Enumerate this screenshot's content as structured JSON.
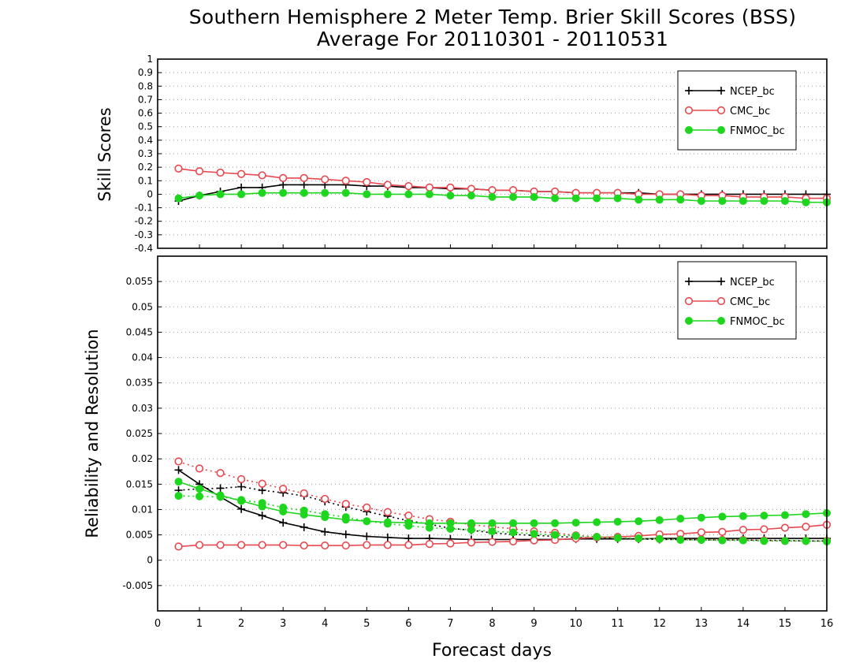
{
  "title_line1": "Southern Hemisphere 2 Meter Temp. Brier Skill Scores (BSS)",
  "title_line2": "Average For 20110301 - 20110531",
  "xlabel": "Forecast days",
  "legend_entries": [
    "NCEP_bc",
    "CMC_bc",
    "FNMOC_bc"
  ],
  "colors": {
    "NCEP_bc": "#000000",
    "CMC_bc": "#e8484f",
    "FNMOC_bc": "#1fd61f"
  },
  "chart_data": [
    {
      "type": "line",
      "ylabel": "Skill Scores",
      "ylim": [
        -0.4,
        1
      ],
      "xlim": [
        0,
        16
      ],
      "y_ticks": [
        "-0.4",
        "-0.3",
        "-0.2",
        "-0.1",
        "0",
        "0.1",
        "0.2",
        "0.3",
        "0.4",
        "0.5",
        "0.6",
        "0.7",
        "0.8",
        "0.9",
        "1"
      ],
      "x_ticks": [
        "0",
        "1",
        "2",
        "3",
        "4",
        "5",
        "6",
        "7",
        "8",
        "9",
        "10",
        "11",
        "12",
        "13",
        "14",
        "15",
        "16"
      ],
      "grid": true,
      "legend_position": "top-right",
      "x": [
        0.5,
        1,
        1.5,
        2,
        2.5,
        3,
        3.5,
        4,
        4.5,
        5,
        5.5,
        6,
        6.5,
        7,
        7.5,
        8,
        8.5,
        9,
        9.5,
        10,
        10.5,
        11,
        11.5,
        12,
        12.5,
        13,
        13.5,
        14,
        14.5,
        15,
        15.5,
        16
      ],
      "series": [
        {
          "name": "NCEP_bc",
          "style": "solid",
          "marker": "plus",
          "values": [
            -0.05,
            -0.01,
            0.02,
            0.05,
            0.05,
            0.07,
            0.07,
            0.07,
            0.07,
            0.06,
            0.06,
            0.05,
            0.05,
            0.04,
            0.04,
            0.03,
            0.03,
            0.02,
            0.02,
            0.01,
            0.01,
            0.01,
            0.01,
            0.0,
            0.0,
            0.0,
            0.0,
            0.0,
            0.0,
            0.0,
            0.0,
            0.0
          ]
        },
        {
          "name": "CMC_bc",
          "style": "solid",
          "marker": "open-circle",
          "values": [
            0.19,
            0.17,
            0.16,
            0.15,
            0.14,
            0.12,
            0.12,
            0.11,
            0.1,
            0.09,
            0.07,
            0.06,
            0.05,
            0.05,
            0.04,
            0.03,
            0.03,
            0.02,
            0.02,
            0.01,
            0.01,
            0.01,
            0.0,
            0.0,
            0.0,
            -0.01,
            -0.01,
            -0.02,
            -0.02,
            -0.02,
            -0.03,
            -0.03
          ]
        },
        {
          "name": "FNMOC_bc",
          "style": "solid",
          "marker": "filled-circle",
          "values": [
            -0.03,
            -0.01,
            0.0,
            0.0,
            0.01,
            0.01,
            0.01,
            0.01,
            0.01,
            0.0,
            0.0,
            0.0,
            0.0,
            -0.01,
            -0.01,
            -0.02,
            -0.02,
            -0.02,
            -0.03,
            -0.03,
            -0.03,
            -0.03,
            -0.04,
            -0.04,
            -0.04,
            -0.05,
            -0.05,
            -0.05,
            -0.05,
            -0.05,
            -0.06,
            -0.06
          ]
        }
      ]
    },
    {
      "type": "line",
      "ylabel": "Reliability and Resolution",
      "ylim": [
        -0.01,
        0.06
      ],
      "xlim": [
        0,
        16
      ],
      "y_ticks": [
        "-0.005",
        "0",
        "0.005",
        "0.01",
        "0.015",
        "0.02",
        "0.025",
        "0.03",
        "0.035",
        "0.04",
        "0.045",
        "0.05",
        "0.055"
      ],
      "x_ticks": [
        "0",
        "1",
        "2",
        "3",
        "4",
        "5",
        "6",
        "7",
        "8",
        "9",
        "10",
        "11",
        "12",
        "13",
        "14",
        "15",
        "16"
      ],
      "grid": true,
      "legend_position": "top-right",
      "x": [
        0.5,
        1,
        1.5,
        2,
        2.5,
        3,
        3.5,
        4,
        4.5,
        5,
        5.5,
        6,
        6.5,
        7,
        7.5,
        8,
        8.5,
        9,
        9.5,
        10,
        10.5,
        11,
        11.5,
        12,
        12.5,
        13,
        13.5,
        14,
        14.5,
        15,
        15.5,
        16
      ],
      "series": [
        {
          "name": "NCEP_bc",
          "style": "solid",
          "marker": "plus",
          "values": [
            0.0178,
            0.015,
            0.0125,
            0.0101,
            0.0088,
            0.0074,
            0.0065,
            0.0056,
            0.0051,
            0.0047,
            0.0045,
            0.0043,
            0.0043,
            0.0042,
            0.0041,
            0.0041,
            0.0041,
            0.0041,
            0.0041,
            0.0042,
            0.0042,
            0.0042,
            0.0042,
            0.0043,
            0.0043,
            0.0043,
            0.0043,
            0.0043,
            0.0043,
            0.0043,
            0.0043,
            0.0043
          ]
        },
        {
          "name": "NCEP_bc",
          "style": "dotted",
          "marker": "plus",
          "values": [
            0.0138,
            0.0141,
            0.0142,
            0.0145,
            0.0138,
            0.0133,
            0.0127,
            0.0116,
            0.0105,
            0.0096,
            0.0087,
            0.0078,
            0.0071,
            0.0063,
            0.0059,
            0.0054,
            0.0051,
            0.0049,
            0.0047,
            0.0045,
            0.0044,
            0.0043,
            0.0042,
            0.0041,
            0.0041,
            0.004,
            0.004,
            0.004,
            0.0039,
            0.0039,
            0.0038,
            0.0038
          ]
        },
        {
          "name": "CMC_bc",
          "style": "solid",
          "marker": "open-circle",
          "values": [
            0.0027,
            0.003,
            0.003,
            0.003,
            0.003,
            0.003,
            0.0029,
            0.0029,
            0.0029,
            0.003,
            0.003,
            0.003,
            0.0032,
            0.0033,
            0.0035,
            0.0036,
            0.0037,
            0.0039,
            0.004,
            0.0043,
            0.0045,
            0.0046,
            0.0048,
            0.0051,
            0.0052,
            0.0055,
            0.0056,
            0.006,
            0.0061,
            0.0064,
            0.0066,
            0.007
          ]
        },
        {
          "name": "CMC_bc",
          "style": "dotted",
          "marker": "open-circle",
          "values": [
            0.0195,
            0.0181,
            0.0172,
            0.016,
            0.0151,
            0.0141,
            0.0132,
            0.0121,
            0.0111,
            0.0104,
            0.0095,
            0.0088,
            0.0081,
            0.0076,
            0.007,
            0.0066,
            0.0062,
            0.0057,
            0.0054,
            0.0049,
            0.0046,
            0.0044,
            0.0043,
            0.0042,
            0.0041,
            0.0041,
            0.004,
            0.004,
            0.0039,
            0.0038,
            0.0038,
            0.0038
          ]
        },
        {
          "name": "FNMOC_bc",
          "style": "solid",
          "marker": "filled-circle",
          "values": [
            0.0155,
            0.0141,
            0.0128,
            0.0117,
            0.0106,
            0.0096,
            0.009,
            0.0085,
            0.008,
            0.0077,
            0.0075,
            0.0074,
            0.0073,
            0.0073,
            0.0073,
            0.0073,
            0.0073,
            0.0073,
            0.0073,
            0.0074,
            0.0075,
            0.0076,
            0.0077,
            0.0079,
            0.0082,
            0.0084,
            0.0086,
            0.0087,
            0.0088,
            0.0089,
            0.0091,
            0.0093
          ]
        },
        {
          "name": "FNMOC_bc",
          "style": "dotted",
          "marker": "filled-circle",
          "values": [
            0.0127,
            0.0126,
            0.0125,
            0.0119,
            0.0113,
            0.0104,
            0.0098,
            0.0091,
            0.0085,
            0.0077,
            0.0072,
            0.0068,
            0.0064,
            0.0062,
            0.006,
            0.0057,
            0.0055,
            0.0052,
            0.005,
            0.0048,
            0.0046,
            0.0044,
            0.0043,
            0.0042,
            0.004,
            0.004,
            0.0039,
            0.0039,
            0.0038,
            0.0038,
            0.0038,
            0.0037
          ]
        }
      ]
    }
  ]
}
